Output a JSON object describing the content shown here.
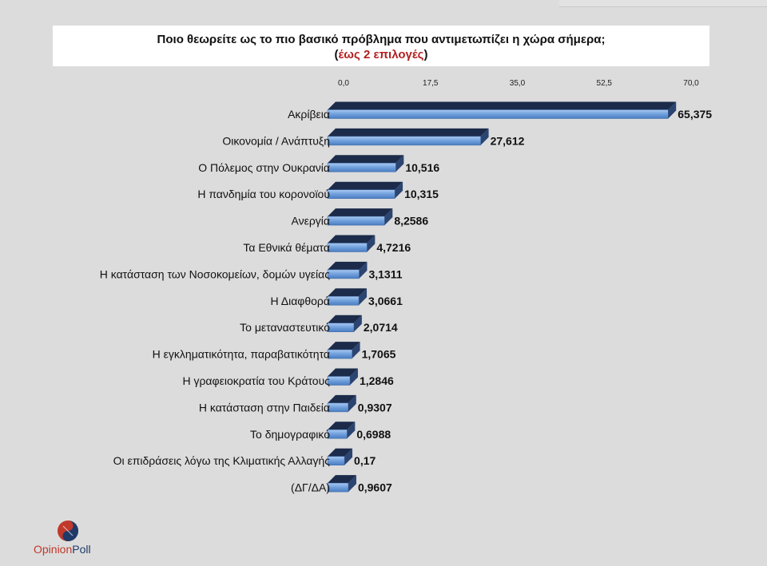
{
  "title": {
    "line1": "Ποιο θεωρείτε ως το πιο βασικό πρόβλημα που αντιμετωπίζει η χώρα σήμερα;",
    "line2_open": "(",
    "line2_accent": "έως 2 επιλογές",
    "line2_close": ")"
  },
  "logo": {
    "part1": "Opinion",
    "part2": "Poll"
  },
  "colors": {
    "bar": "#6f9fdc",
    "bar_dark": "#1c2b4a",
    "accent": "#b32020",
    "background": "#dcdcdc"
  },
  "chart_data": {
    "type": "bar",
    "orientation": "horizontal",
    "xlim": [
      0,
      70
    ],
    "ticks": [
      "0,0",
      "17,5",
      "35,0",
      "52,5",
      "70,0"
    ],
    "tick_values": [
      0,
      17.5,
      35,
      52.5,
      70
    ],
    "categories": [
      "Ακρίβεια",
      "Οικονομία / Ανάπτυξη",
      "Ο Πόλεμος στην Ουκρανία",
      "Η πανδημία του κορονοϊού",
      "Ανεργία",
      "Τα Εθνικά θέματα",
      "Η κατάσταση των Νοσοκομείων, δομών υγείας",
      "Η Διαφθορά",
      "Το μεταναστευτικό",
      "Η εγκληματικότητα, παραβατικότητα",
      "Η γραφειοκρατία του Κράτους",
      "Η κατάσταση στην Παιδεία",
      "Το δημογραφικό",
      "Οι επιδράσεις λόγω της Κλιματικής Αλλαγής",
      "(ΔΓ/ΔΑ)"
    ],
    "values": [
      65.375,
      27.612,
      10.516,
      10.315,
      8.2586,
      4.7216,
      3.1311,
      3.0661,
      2.0714,
      1.7065,
      1.2846,
      0.9307,
      0.6988,
      0.17,
      0.9607
    ],
    "value_labels": [
      "65,375",
      "27,612",
      "10,516",
      "10,315",
      "8,2586",
      "4,7216",
      "3,1311",
      "3,0661",
      "2,0714",
      "1,7065",
      "1,2846",
      "0,9307",
      "0,6988",
      "0,17",
      "0,9607"
    ]
  }
}
